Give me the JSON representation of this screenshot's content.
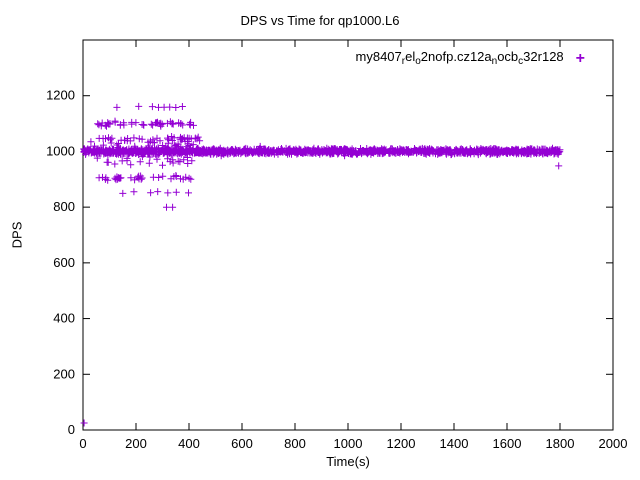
{
  "chart_data": {
    "type": "scatter",
    "title": "DPS vs Time for qp1000.L6",
    "xlabel": "Time(s)",
    "ylabel": "DPS",
    "xlim": [
      0,
      2000
    ],
    "ylim": [
      0,
      1400
    ],
    "xticks": [
      0,
      200,
      400,
      600,
      800,
      1000,
      1200,
      1400,
      1600,
      1800,
      2000
    ],
    "yticks": [
      0,
      200,
      400,
      600,
      800,
      1000,
      1200
    ],
    "grid": false,
    "border_color": "#000000",
    "legend": {
      "position": "top-right",
      "marker": "+",
      "label_plain": "my8407_rel_o2nofp.cz12a_nocb_c32r128",
      "label_segments": [
        {
          "text": "my8407",
          "sub": false
        },
        {
          "text": "r",
          "sub": true
        },
        {
          "text": "el",
          "sub": false
        },
        {
          "text": "o",
          "sub": true
        },
        {
          "text": "2nofp.cz12a",
          "sub": false
        },
        {
          "text": "n",
          "sub": true
        },
        {
          "text": "ocb",
          "sub": false
        },
        {
          "text": "c",
          "sub": true
        },
        {
          "text": "32r128",
          "sub": false
        }
      ]
    },
    "series": [
      {
        "name": "my8407_rel_o2nofp.cz12a_nocb_c32r128",
        "marker": "plus",
        "color": "#9400d3",
        "band": {
          "x_min": 0,
          "x_max": 1800,
          "y_center": 1000,
          "y_jitter": 12,
          "count": 1500,
          "seed": 42
        },
        "spread": {
          "x_min": 20,
          "x_max": 430,
          "y_center": 1000,
          "y_jitter": 45,
          "count": 90,
          "seed": 7
        },
        "mid_sparse": {
          "x_min": 430,
          "x_max": 1000,
          "y_center": 1000,
          "y_jitter": 28,
          "count": 12,
          "seed": 11
        },
        "rows": [
          {
            "y": 1160,
            "jitter": 4,
            "seed": 100,
            "xs": [
              128,
              210,
              262,
              285,
              306,
              327,
              350,
              375
            ]
          },
          {
            "y": 1100,
            "jitter": 12,
            "seed": 101,
            "count": 46,
            "x_ranges": [
              [
                45,
                235
              ],
              [
                255,
                420
              ]
            ]
          },
          {
            "y": 1045,
            "jitter": 10,
            "seed": 102,
            "count": 40,
            "x_ranges": [
              [
                35,
                235
              ],
              [
                255,
                440
              ]
            ]
          },
          {
            "y": 905,
            "jitter": 10,
            "seed": 103,
            "count": 34,
            "x_ranges": [
              [
                40,
                235
              ],
              [
                255,
                420
              ]
            ]
          },
          {
            "y": 955,
            "jitter": 6,
            "seed": 104,
            "xs": [
              95,
              120,
              180,
              250,
              300,
              340,
              395
            ]
          },
          {
            "y": 852,
            "jitter": 5,
            "seed": 105,
            "xs": [
              150,
              192,
              255,
              282,
              320,
              352,
              398
            ]
          },
          {
            "y": 800,
            "jitter": 3,
            "seed": 106,
            "xs": [
              315,
              338
            ]
          },
          {
            "y": 25,
            "jitter": 0,
            "seed": 107,
            "xs": [
              4
            ]
          },
          {
            "y": 948,
            "jitter": 0,
            "seed": 108,
            "xs": [
              1795
            ]
          }
        ]
      }
    ]
  }
}
